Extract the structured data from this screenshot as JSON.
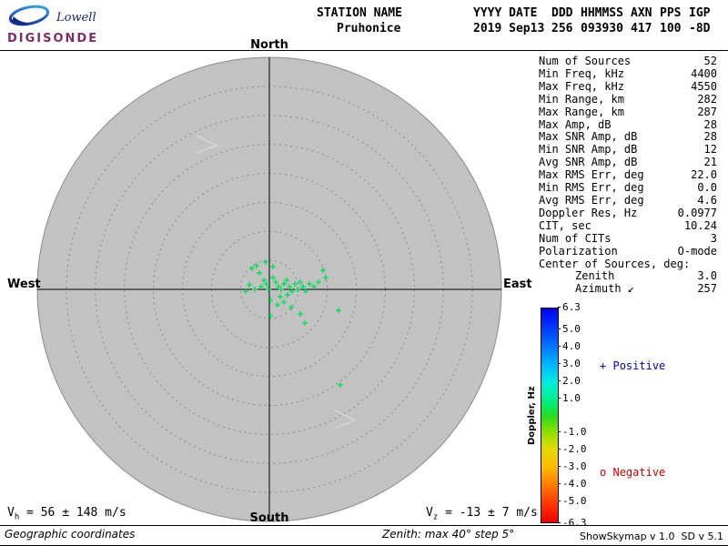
{
  "colors": {
    "plot_bg": "#c2c2c2",
    "ring": "#8a8a8a",
    "axis": "#000000",
    "point": "#00dd55",
    "arrow": "#d2d2d2",
    "positive": "#0000bb",
    "negative": "#cc0000"
  },
  "logo": {
    "name": "Lowell",
    "product": "DIGISONDE"
  },
  "header": {
    "cols": [
      {
        "label": "STATION NAME",
        "value": "Pruhonice"
      },
      {
        "label": "YYYY DATE",
        "value": "2019 Sep13"
      },
      {
        "label": "DDD",
        "value": "256"
      },
      {
        "label": "HHMMSS",
        "value": "093930"
      },
      {
        "label": "AXN",
        "value": "417"
      },
      {
        "label": "PPS",
        "value": "100"
      },
      {
        "label": "IGP",
        "value": "-8D"
      }
    ]
  },
  "compass": {
    "north": "North",
    "south": "South",
    "east": "East",
    "west": "West"
  },
  "stats": {
    "rows": [
      {
        "label": "Num of Sources",
        "value": "52"
      },
      {
        "label": "Min Freq, kHz",
        "value": "4400"
      },
      {
        "label": "Max Freq, kHz",
        "value": "4550"
      },
      {
        "label": "Min Range, km",
        "value": "282"
      },
      {
        "label": "Max Range, km",
        "value": "287"
      },
      {
        "label": "Max Amp, dB",
        "value": "28"
      },
      {
        "label": "Max SNR Amp, dB",
        "value": "28"
      },
      {
        "label": "Min SNR Amp, dB",
        "value": "12"
      },
      {
        "label": "Avg SNR Amp, dB",
        "value": "21"
      },
      {
        "label": "Max RMS Err, deg",
        "value": "22.0"
      },
      {
        "label": "Min RMS Err, deg",
        "value": "0.0"
      },
      {
        "label": "Avg RMS Err, deg",
        "value": "4.6"
      },
      {
        "label": "Doppler Res, Hz",
        "value": "0.0977"
      },
      {
        "label": "CIT, sec",
        "value": "10.24"
      },
      {
        "label": "Num of CITs",
        "value": "3"
      },
      {
        "label": "Polarization",
        "value": "O-mode"
      },
      {
        "label": "Center of Sources, deg:",
        "value": ""
      },
      {
        "label": "Zenith",
        "value": "3.0",
        "indent": true
      },
      {
        "label": "Azimuth ↙",
        "value": "257",
        "indent": true
      }
    ]
  },
  "colorbar": {
    "title": "Doppler, Hz",
    "max": 6.3,
    "min": -6.3,
    "ticks": [
      6.3,
      5.0,
      4.0,
      3.0,
      2.0,
      1.0,
      -1.0,
      -2.0,
      -3.0,
      -4.0,
      -5.0,
      -6.3
    ]
  },
  "legend": {
    "positive_icon": "+",
    "positive_label": "Positive",
    "negative_icon": "o",
    "negative_label": "Negative"
  },
  "footer": {
    "vh_prefix": "V",
    "vh_sub": "h",
    "vh_rest": " = 56 ± 148 m/s",
    "vz_prefix": "V",
    "vz_sub": "z",
    "vz_rest": " = -13 ± 7 m/s",
    "coords_note": "Geographic coordinates",
    "zenith_note": "Zenith: max 40° step 5°",
    "version": "ShowSkymap v 1.0  SD v 5.1"
  },
  "chart_data": {
    "type": "scatter",
    "title": "Digisonde skymap of reflection sources (Pruhonice, 2019 Sep13 093930)",
    "projection": "polar-sky",
    "zenith_max_deg": 40,
    "zenith_step_deg": 5,
    "rings": 8,
    "center_of_sources": {
      "zenith_deg": 3.0,
      "azimuth_deg": 257
    },
    "units": "points are [dx,dy] pixel offsets from plot center; 255 px = 40 deg zenith (31.9 px per 5 deg ring)",
    "marker": "plus",
    "doppler_note": "all visible sources near 0 Hz Doppler (green)",
    "points": [
      [
        -19,
        -23
      ],
      [
        -11,
        -18
      ],
      [
        -14,
        -26
      ],
      [
        -4,
        -30
      ],
      [
        4,
        -25
      ],
      [
        -6,
        -10
      ],
      [
        -3,
        -6
      ],
      [
        -9,
        -3
      ],
      [
        -16,
        0
      ],
      [
        -22,
        -5
      ],
      [
        -26,
        2
      ],
      [
        -1,
        0
      ],
      [
        4,
        -13
      ],
      [
        7,
        -8
      ],
      [
        10,
        -3
      ],
      [
        13,
        0
      ],
      [
        16,
        -6
      ],
      [
        19,
        -10
      ],
      [
        22,
        -3
      ],
      [
        25,
        2
      ],
      [
        28,
        -6
      ],
      [
        31,
        0
      ],
      [
        34,
        -8
      ],
      [
        37,
        -3
      ],
      [
        40,
        2
      ],
      [
        44,
        -6
      ],
      [
        49,
        -3
      ],
      [
        54,
        -8
      ],
      [
        59,
        -21
      ],
      [
        62,
        -13
      ],
      [
        12,
        8
      ],
      [
        20,
        6
      ],
      [
        1,
        12
      ],
      [
        9,
        17
      ],
      [
        16,
        14
      ],
      [
        24,
        20
      ],
      [
        34,
        27
      ],
      [
        1,
        29
      ],
      [
        39,
        37
      ],
      [
        76,
        23
      ],
      [
        78,
        105
      ]
    ],
    "arrows": [
      "216,149 238,160 216,168",
      "368,451 390,462 368,470"
    ]
  }
}
